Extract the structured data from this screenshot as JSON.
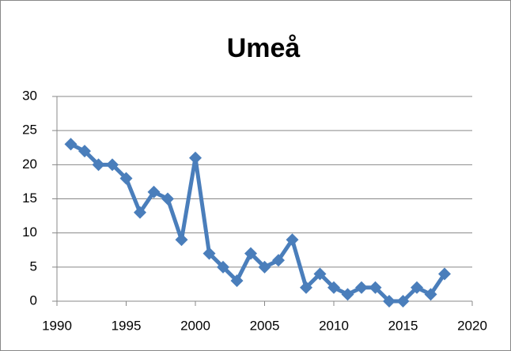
{
  "chart_data": {
    "type": "line",
    "title": "Umeå",
    "x": [
      1991,
      1992,
      1993,
      1994,
      1995,
      1996,
      1997,
      1998,
      1999,
      2000,
      2001,
      2002,
      2003,
      2004,
      2005,
      2006,
      2007,
      2008,
      2009,
      2010,
      2011,
      2012,
      2013,
      2014,
      2015,
      2016,
      2017,
      2018
    ],
    "series": [
      {
        "color": "#4a7ebb",
        "values": [
          23,
          22,
          20,
          20,
          18,
          13,
          16,
          15,
          9,
          21,
          7,
          5,
          3,
          7,
          5,
          6,
          9,
          2,
          4,
          2,
          1,
          2,
          2,
          0,
          0,
          2,
          1,
          4
        ]
      }
    ],
    "xlim": [
      1990,
      2020
    ],
    "xticks": [
      1990,
      1995,
      2000,
      2005,
      2010,
      2015,
      2020
    ],
    "ylim": [
      0,
      30
    ],
    "yticks": [
      0,
      5,
      10,
      15,
      20,
      25,
      30
    ],
    "grid": true
  }
}
